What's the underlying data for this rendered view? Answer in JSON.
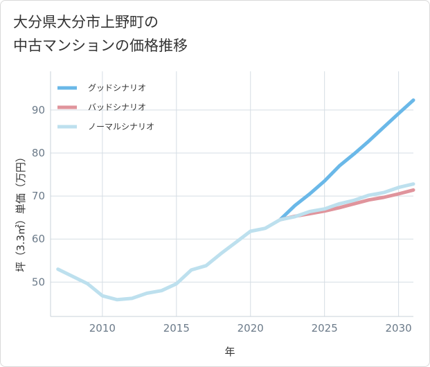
{
  "chart_data": {
    "type": "line",
    "title": "大分県大分市上野町の\n中古マンションの価格推移",
    "xlabel": "年",
    "ylabel": "坪（3.3㎡）単価（万円）",
    "xlim": [
      2006.5,
      2031
    ],
    "ylim": [
      42,
      99
    ],
    "x_ticks": [
      2010,
      2015,
      2020,
      2025,
      2030
    ],
    "y_ticks": [
      50,
      60,
      70,
      80,
      90
    ],
    "grid": true,
    "legend_position": "top-left",
    "series": [
      {
        "name": "グッドシナリオ",
        "color": "#6ab8e8",
        "x": [
          2022,
          2023,
          2024,
          2025,
          2026,
          2027,
          2028,
          2029,
          2030,
          2031
        ],
        "values": [
          64.5,
          67.8,
          70.5,
          73.5,
          77.0,
          79.8,
          82.8,
          86.0,
          89.2,
          92.3
        ]
      },
      {
        "name": "バッドシナリオ",
        "color": "#e0949c",
        "x": [
          2022,
          2023,
          2024,
          2025,
          2026,
          2027,
          2028,
          2029,
          2030,
          2031
        ],
        "values": [
          64.5,
          65.3,
          65.9,
          66.5,
          67.3,
          68.2,
          69.1,
          69.7,
          70.5,
          71.4
        ]
      },
      {
        "name": "ノーマルシナリオ",
        "color": "#bde0ee",
        "x": [
          2007,
          2008,
          2009,
          2010,
          2011,
          2012,
          2013,
          2014,
          2015,
          2016,
          2017,
          2018,
          2019,
          2020,
          2021,
          2022,
          2023,
          2024,
          2025,
          2026,
          2027,
          2028,
          2029,
          2030,
          2031
        ],
        "values": [
          53.0,
          51.3,
          49.6,
          46.8,
          45.9,
          46.2,
          47.4,
          48.0,
          49.6,
          52.8,
          53.8,
          56.6,
          59.2,
          61.8,
          62.5,
          64.5,
          65.2,
          66.4,
          67.0,
          68.2,
          69.0,
          70.2,
          70.8,
          72.0,
          72.8
        ]
      }
    ]
  }
}
